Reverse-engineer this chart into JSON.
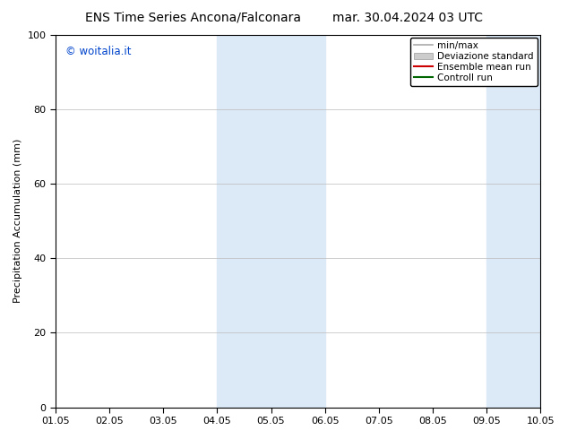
{
  "title_left": "ENS Time Series Ancona/Falconara",
  "title_right": "mar. 30.04.2024 03 UTC",
  "ylabel": "Precipitation Accumulation (mm)",
  "ylim": [
    0,
    100
  ],
  "yticks": [
    0,
    20,
    40,
    60,
    80,
    100
  ],
  "x_start": 1.05,
  "x_end": 10.05,
  "xtick_labels": [
    "01.05",
    "02.05",
    "03.05",
    "04.05",
    "05.05",
    "06.05",
    "07.05",
    "08.05",
    "09.05",
    "10.05"
  ],
  "xtick_positions": [
    1.05,
    2.05,
    3.05,
    4.05,
    5.05,
    6.05,
    7.05,
    8.05,
    9.05,
    10.05
  ],
  "shaded_regions": [
    {
      "x_start": 4.05,
      "x_end": 6.05,
      "color": "#dce9f7"
    },
    {
      "x_start": 9.05,
      "x_end": 10.05,
      "color": "#dce9f7"
    }
  ],
  "legend_items": [
    {
      "label": "min/max",
      "color": "#aaaaaa",
      "linewidth": 1.2,
      "linestyle": "-",
      "type": "line"
    },
    {
      "label": "Deviazione standard",
      "color": "#cccccc",
      "linewidth": 8,
      "linestyle": "-",
      "type": "patch"
    },
    {
      "label": "Ensemble mean run",
      "color": "#cc0000",
      "linewidth": 1.5,
      "linestyle": "-",
      "type": "line"
    },
    {
      "label": "Controll run",
      "color": "#006600",
      "linewidth": 1.5,
      "linestyle": "-",
      "type": "line"
    }
  ],
  "watermark_text": "© woitalia.it",
  "watermark_color": "#0044cc",
  "background_color": "#ffffff",
  "plot_bg_color": "#ffffff",
  "grid_color": "#bbbbbb",
  "title_fontsize": 10,
  "axis_label_fontsize": 8,
  "tick_fontsize": 8,
  "legend_fontsize": 7.5
}
